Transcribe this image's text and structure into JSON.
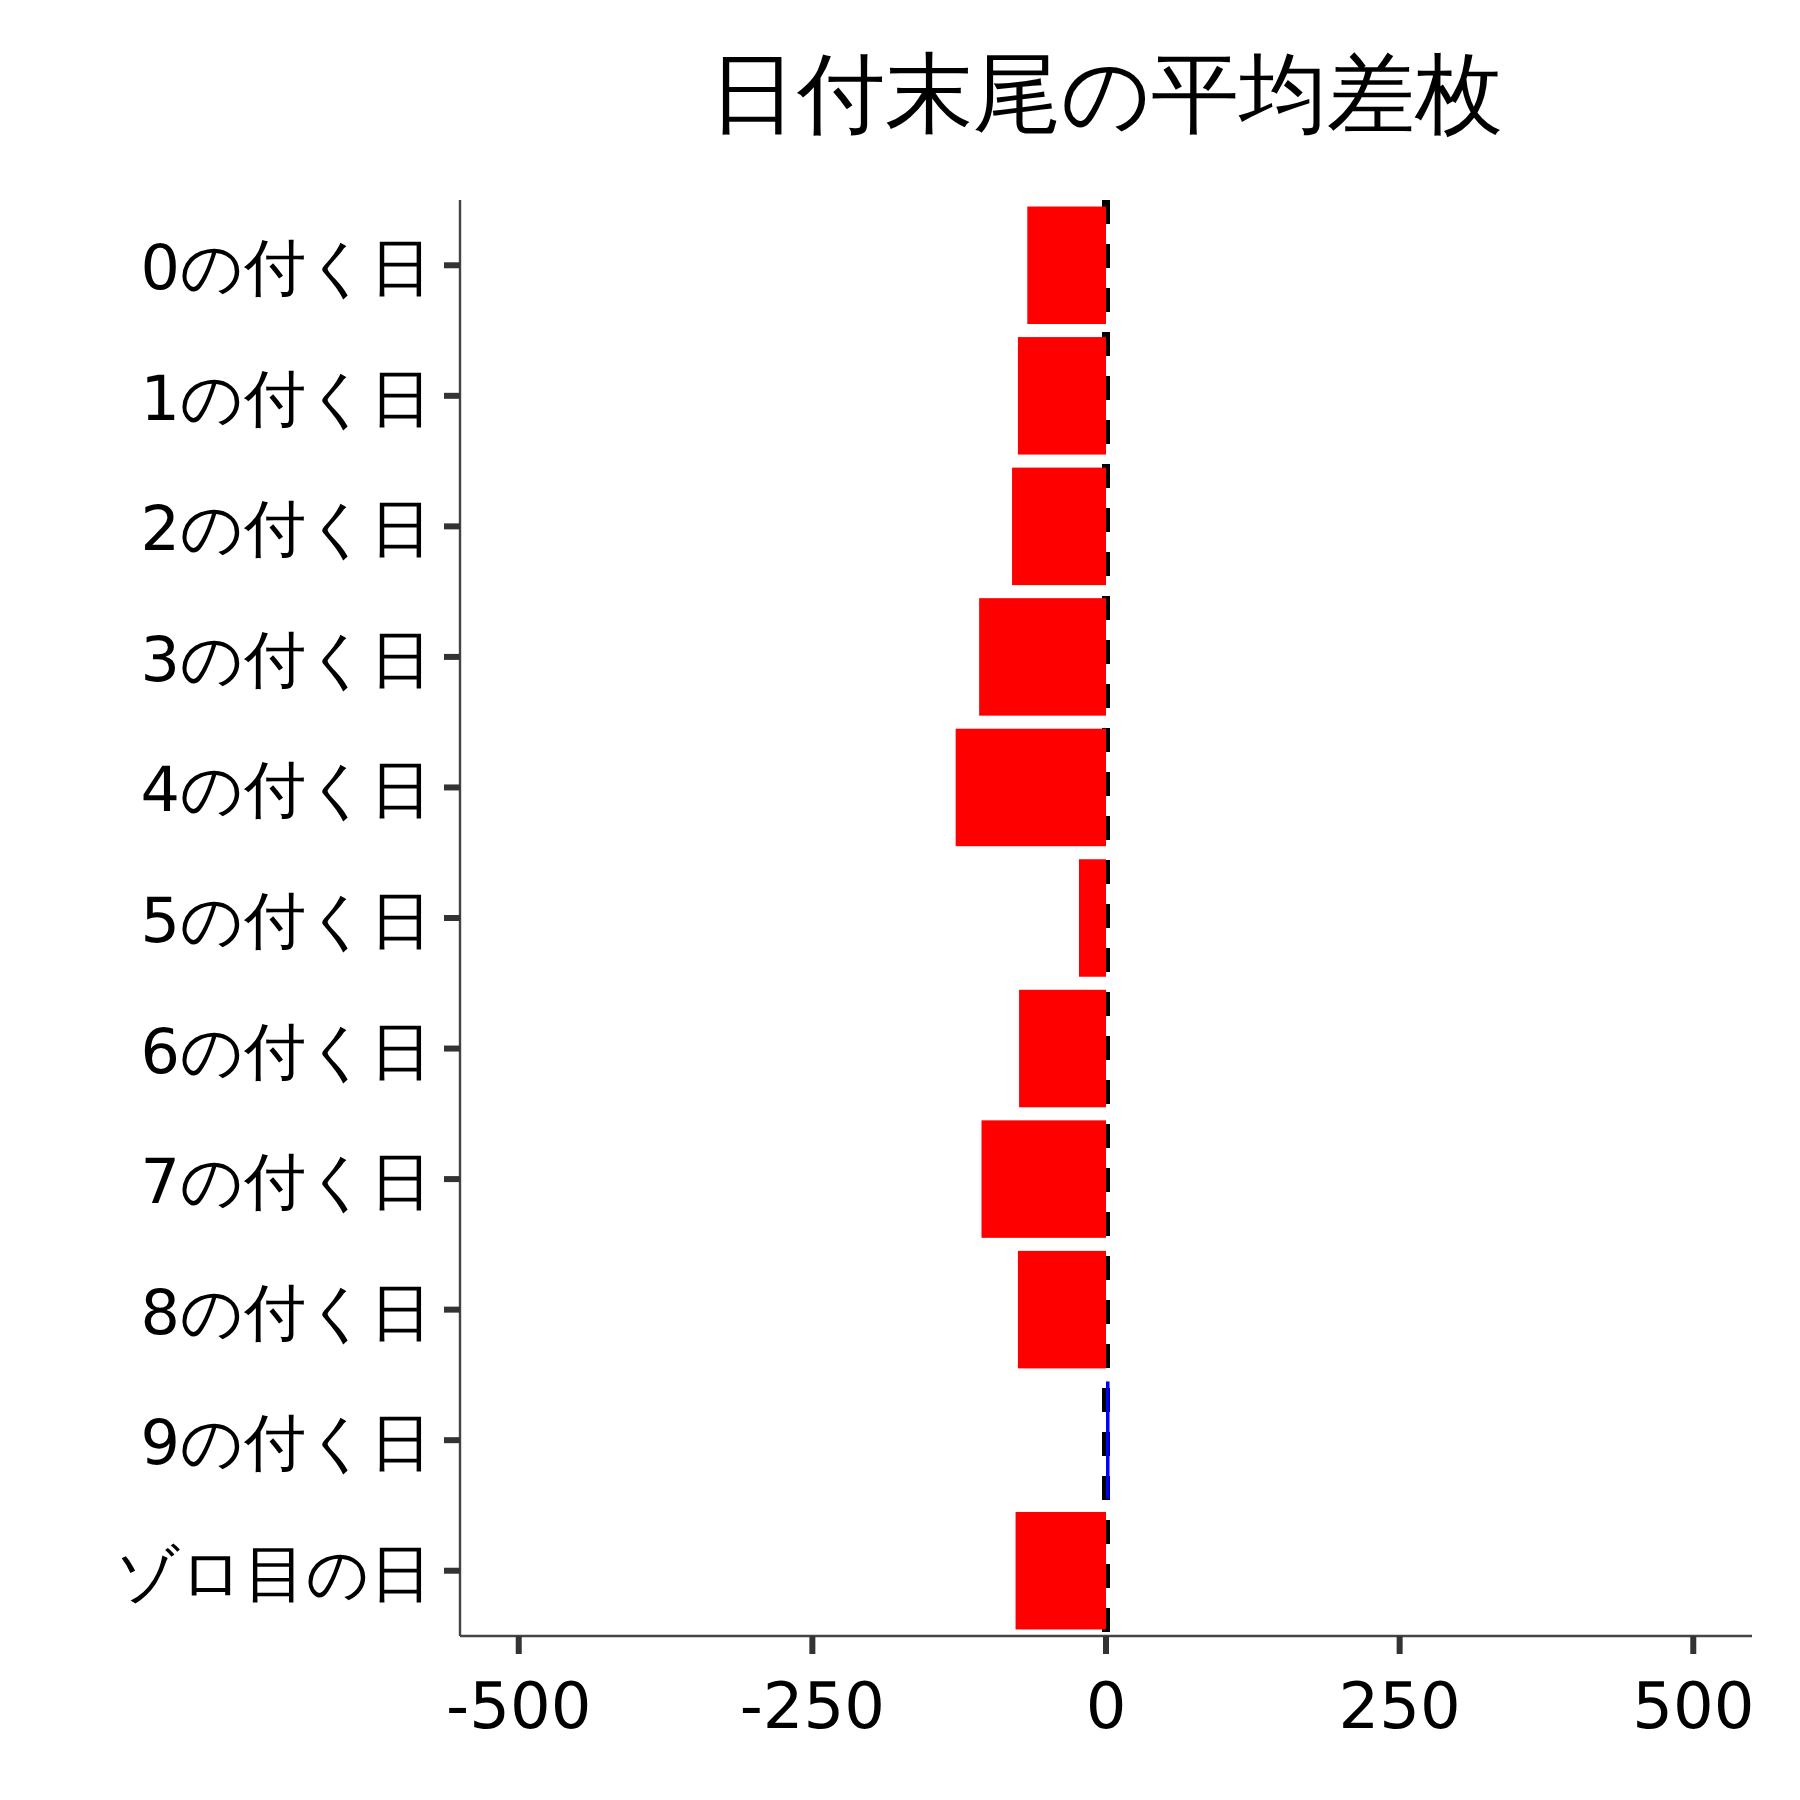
{
  "chart_data": {
    "type": "bar",
    "orientation": "horizontal",
    "title": "日付末尾の平均差枚",
    "categories": [
      "0の付く日",
      "1の付く日",
      "2の付く日",
      "3の付く日",
      "4の付く日",
      "5の付く日",
      "6の付く日",
      "7の付く日",
      "8の付く日",
      "9の付く日",
      "ゾロ目の日"
    ],
    "values": [
      -67,
      -75,
      -80,
      -108,
      -128,
      -23,
      -74,
      -106,
      -75,
      3,
      -77
    ],
    "colors": [
      "#ff0000",
      "#ff0000",
      "#ff0000",
      "#ff0000",
      "#ff0000",
      "#ff0000",
      "#ff0000",
      "#ff0000",
      "#ff0000",
      "#0000ff",
      "#ff0000"
    ],
    "xlim": [
      -550,
      550
    ],
    "xticks": [
      -500,
      -250,
      0,
      250,
      500
    ],
    "ref_lines": [
      {
        "axis": "x",
        "value": 0,
        "color": "#000000",
        "line_style": "dashed"
      }
    ],
    "grid": false
  }
}
